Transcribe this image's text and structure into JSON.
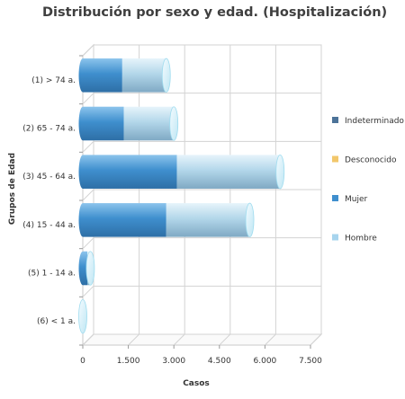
{
  "chart_data": {
    "type": "bar",
    "orientation": "horizontal",
    "stacked": true,
    "three_d": true,
    "title": "Distribución por sexo y edad. (Hospitalización)",
    "xlabel": "Casos",
    "ylabel": "Grupos de Edad",
    "categories": [
      "(1) > 74 a.",
      "(2) 65 - 74 a.",
      "(3) 45 - 64 a.",
      "(4) 15 - 44 a.",
      "(5) 1 - 14 a.",
      "(6) < 1 a."
    ],
    "xlim": [
      0,
      7500
    ],
    "xticks": [
      0,
      1500,
      3000,
      4500,
      6000,
      7500
    ],
    "xtick_labels": [
      "0",
      "1.500",
      "3.000",
      "4.500",
      "6.000",
      "7.500"
    ],
    "grid": true,
    "legend_position": "right",
    "series": [
      {
        "name": "Indeterminado",
        "color": "#4d7399",
        "values": [
          0,
          0,
          0,
          0,
          0,
          0
        ]
      },
      {
        "name": "Desconocido",
        "color": "#f2c76b",
        "values": [
          0,
          0,
          0,
          0,
          0,
          0
        ]
      },
      {
        "name": "Mujer",
        "color": "#3f8fce",
        "values": [
          1300,
          1350,
          3100,
          2750,
          150,
          0
        ]
      },
      {
        "name": "Hombre",
        "color": "#a7d4ee",
        "values": [
          1450,
          1650,
          3400,
          2750,
          100,
          0
        ]
      }
    ]
  }
}
